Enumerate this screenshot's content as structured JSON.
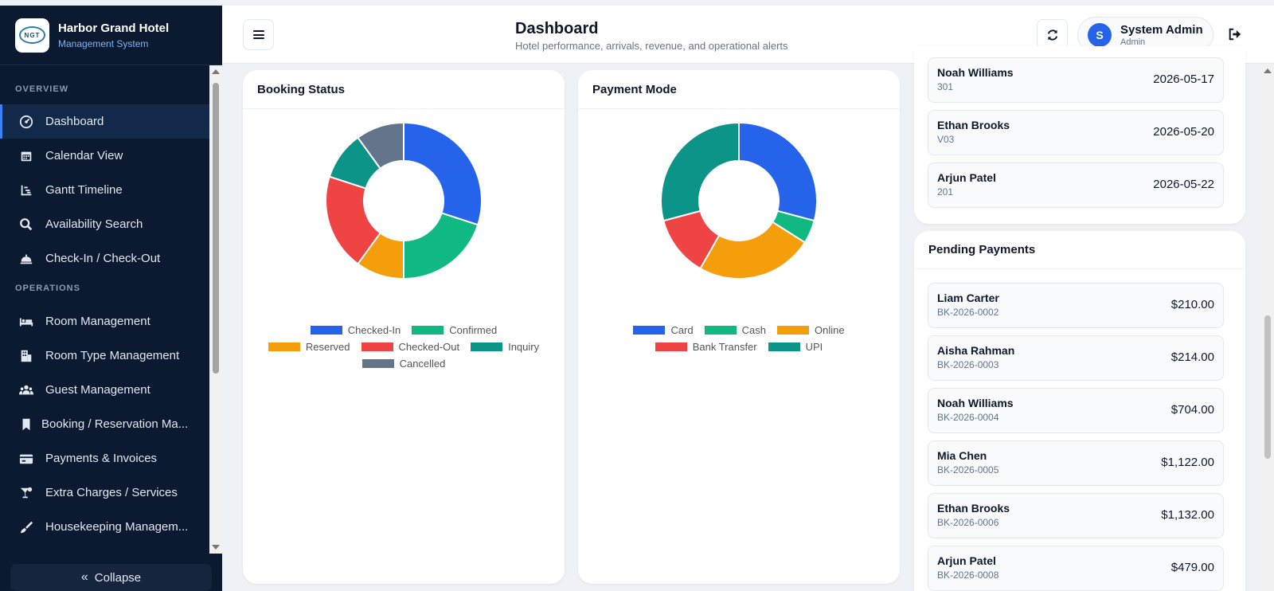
{
  "brand": {
    "name": "Harbor Grand Hotel",
    "subtitle": "Management System",
    "logo_text": "NGT"
  },
  "sidebar": {
    "sections": [
      {
        "title": "OVERVIEW",
        "items": [
          {
            "label": "Dashboard",
            "icon": "gauge-icon",
            "active": true
          },
          {
            "label": "Calendar View",
            "icon": "calendar-icon"
          },
          {
            "label": "Gantt Timeline",
            "icon": "timeline-icon"
          },
          {
            "label": "Availability Search",
            "icon": "search-icon"
          },
          {
            "label": "Check-In / Check-Out",
            "icon": "bell-icon"
          }
        ]
      },
      {
        "title": "OPERATIONS",
        "items": [
          {
            "label": "Room Management",
            "icon": "bed-icon"
          },
          {
            "label": "Room Type Management",
            "icon": "building-icon"
          },
          {
            "label": "Guest Management",
            "icon": "users-icon"
          },
          {
            "label": "Booking / Reservation Ma...",
            "icon": "bookmark-icon"
          },
          {
            "label": "Payments & Invoices",
            "icon": "credit-card-icon"
          },
          {
            "label": "Extra Charges / Services",
            "icon": "cocktail-icon"
          },
          {
            "label": "Housekeeping Managem...",
            "icon": "broom-icon"
          }
        ]
      }
    ],
    "collapse_label": "Collapse"
  },
  "header": {
    "title": "Dashboard",
    "subtitle": "Hotel performance, arrivals, revenue, and operational alerts",
    "user": {
      "initial": "S",
      "name": "System Admin",
      "role": "Admin"
    }
  },
  "chart_data": [
    {
      "type": "pie",
      "title": "Booking Status",
      "categories": [
        "Checked-In",
        "Confirmed",
        "Reserved",
        "Checked-Out",
        "Inquiry",
        "Cancelled"
      ],
      "values": [
        3,
        2,
        1,
        2,
        1,
        1
      ],
      "colors": [
        "#2563eb",
        "#10b981",
        "#f59e0b",
        "#ef4444",
        "#0d9488",
        "#64748b"
      ],
      "legend": "bottom"
    },
    {
      "type": "pie",
      "title": "Payment Mode",
      "categories": [
        "Card",
        "Cash",
        "Online",
        "Bank Transfer",
        "UPI"
      ],
      "values": [
        3,
        0.5,
        2.5,
        1.3,
        3
      ],
      "colors": [
        "#2563eb",
        "#10b981",
        "#f59e0b",
        "#ef4444",
        "#0d9488"
      ],
      "legend": "bottom"
    }
  ],
  "arrivals": [
    {
      "name": "Noah Williams",
      "room": "301",
      "date": "2026-05-17"
    },
    {
      "name": "Ethan Brooks",
      "room": "V03",
      "date": "2026-05-20"
    },
    {
      "name": "Arjun Patel",
      "room": "201",
      "date": "2026-05-22"
    }
  ],
  "pending_payments": {
    "title": "Pending Payments",
    "rows": [
      {
        "name": "Liam Carter",
        "booking": "BK-2026-0002",
        "amount": "$210.00"
      },
      {
        "name": "Aisha Rahman",
        "booking": "BK-2026-0003",
        "amount": "$214.00"
      },
      {
        "name": "Noah Williams",
        "booking": "BK-2026-0004",
        "amount": "$704.00"
      },
      {
        "name": "Mia Chen",
        "booking": "BK-2026-0005",
        "amount": "$1,122.00"
      },
      {
        "name": "Ethan Brooks",
        "booking": "BK-2026-0006",
        "amount": "$1,132.00"
      },
      {
        "name": "Arjun Patel",
        "booking": "BK-2026-0008",
        "amount": "$479.00"
      }
    ]
  }
}
